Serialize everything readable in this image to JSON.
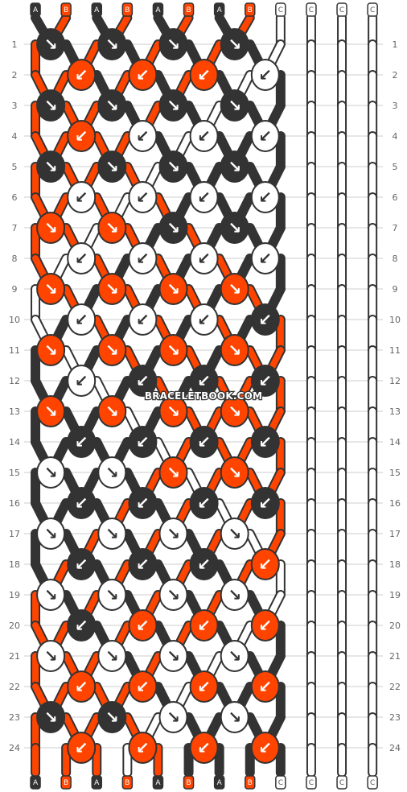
{
  "watermark": "BRACELETBOOK.COM",
  "colors": {
    "A": "#333333",
    "B": "#ff4400",
    "C": "#ffffff",
    "grid": "#cccccc",
    "outline": "#333333"
  },
  "strands_top": [
    "A",
    "B",
    "A",
    "B",
    "A",
    "B",
    "A",
    "B",
    "C",
    "C",
    "C",
    "C"
  ],
  "rows": [
    {
      "label": "1",
      "knots": [
        "A:d",
        "A:d",
        "A:d",
        "A:d"
      ]
    },
    {
      "label": "2",
      "knots": [
        "B:l",
        "B:l",
        "B:l",
        "C:l"
      ]
    },
    {
      "label": "3",
      "knots": [
        "A:d",
        "A:d",
        "A:d",
        "A:d"
      ]
    },
    {
      "label": "4",
      "knots": [
        "B:l",
        "C:l",
        "C:l",
        "C:l"
      ]
    },
    {
      "label": "5",
      "knots": [
        "A:d",
        "A:d",
        "A:d",
        "A:d"
      ]
    },
    {
      "label": "6",
      "knots": [
        "C:l",
        "C:l",
        "C:l",
        "C:l"
      ]
    },
    {
      "label": "7",
      "knots": [
        "B:d",
        "B:d",
        "A:d",
        "A:d"
      ]
    },
    {
      "label": "8",
      "knots": [
        "C:l",
        "C:l",
        "C:l",
        "C:l"
      ]
    },
    {
      "label": "9",
      "knots": [
        "B:d",
        "B:d",
        "B:d",
        "B:d"
      ]
    },
    {
      "label": "10",
      "knots": [
        "C:l",
        "C:l",
        "C:l",
        "A:l"
      ]
    },
    {
      "label": "11",
      "knots": [
        "B:d",
        "B:d",
        "B:d",
        "B:d"
      ]
    },
    {
      "label": "12",
      "knots": [
        "C:l",
        "A:l",
        "A:l",
        "A:l"
      ]
    },
    {
      "label": "13",
      "knots": [
        "B:d",
        "B:d",
        "B:d",
        "B:d"
      ]
    },
    {
      "label": "14",
      "knots": [
        "A:l",
        "A:l",
        "A:l",
        "A:l"
      ]
    },
    {
      "label": "15",
      "knots": [
        "C:d",
        "C:d",
        "B:d",
        "B:d"
      ]
    },
    {
      "label": "16",
      "knots": [
        "A:l",
        "A:l",
        "A:l",
        "A:l"
      ]
    },
    {
      "label": "17",
      "knots": [
        "C:d",
        "C:d",
        "C:d",
        "C:d"
      ]
    },
    {
      "label": "18",
      "knots": [
        "A:l",
        "A:l",
        "A:l",
        "B:l"
      ]
    },
    {
      "label": "19",
      "knots": [
        "C:d",
        "C:d",
        "C:d",
        "C:d"
      ]
    },
    {
      "label": "20",
      "knots": [
        "A:l",
        "B:l",
        "B:l",
        "B:l"
      ]
    },
    {
      "label": "21",
      "knots": [
        "C:d",
        "C:d",
        "C:d",
        "C:d"
      ]
    },
    {
      "label": "22",
      "knots": [
        "B:l",
        "B:l",
        "B:l",
        "B:l"
      ]
    },
    {
      "label": "23",
      "knots": [
        "A:d",
        "A:d",
        "C:d",
        "C:d"
      ]
    },
    {
      "label": "24",
      "knots": [
        "B:l",
        "B:l",
        "B:l",
        "B:l"
      ]
    }
  ],
  "strands_bottom": [
    "A",
    "B",
    "A",
    "B",
    "A",
    "B",
    "A",
    "B",
    "C",
    "C",
    "C",
    "C"
  ]
}
